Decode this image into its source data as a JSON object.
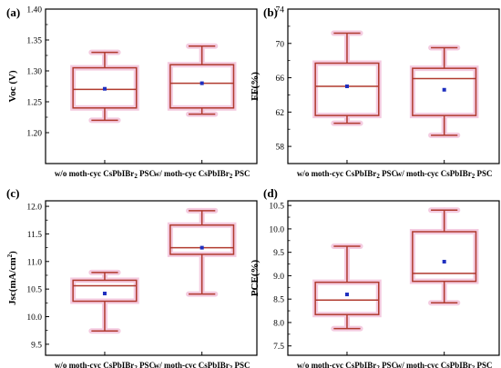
{
  "colors": {
    "box_stroke": "#b03a2e",
    "box_glow": "#f4cbe0",
    "mean_marker": "#1f2fbf",
    "axis": "#000000"
  },
  "chart_data": [
    {
      "type": "box",
      "panel_label": "(a)",
      "ylabel": "Voc (V)",
      "ylim": [
        1.15,
        1.4
      ],
      "yticks": [
        1.2,
        1.25,
        1.3,
        1.35,
        1.4
      ],
      "ytick_labels": [
        "1.20",
        "1.25",
        "1.30",
        "1.35",
        "1.40"
      ],
      "categories": [
        "w/o moth-cyc CsPbIBr2 PSC",
        "w/ moth-cyc CsPbIBr2 PSC"
      ],
      "boxes": [
        {
          "whisker_low": 1.22,
          "q1": 1.24,
          "median": 1.27,
          "q3": 1.305,
          "whisker_high": 1.33,
          "mean": 1.271
        },
        {
          "whisker_low": 1.23,
          "q1": 1.24,
          "median": 1.28,
          "q3": 1.31,
          "whisker_high": 1.34,
          "mean": 1.28
        }
      ]
    },
    {
      "type": "box",
      "panel_label": "(b)",
      "ylabel": "FF(%)",
      "ylim": [
        56,
        74
      ],
      "yticks": [
        58,
        62,
        66,
        70,
        74
      ],
      "ytick_labels": [
        "58",
        "62",
        "66",
        "70",
        "74"
      ],
      "categories": [
        "w/o moth-cyc CsPbIBr2 PSC",
        "w/ moth-cyc CsPbIBr2 PSC"
      ],
      "boxes": [
        {
          "whisker_low": 60.7,
          "q1": 61.6,
          "median": 65.0,
          "q3": 67.7,
          "whisker_high": 71.2,
          "mean": 65.0
        },
        {
          "whisker_low": 59.3,
          "q1": 61.6,
          "median": 65.9,
          "q3": 67.1,
          "whisker_high": 69.5,
          "mean": 64.6
        }
      ]
    },
    {
      "type": "box",
      "panel_label": "(c)",
      "ylabel": "Jsc(mA/cm²)",
      "ylim": [
        9.3,
        12.1
      ],
      "yticks": [
        9.5,
        10.0,
        10.5,
        11.0,
        11.5,
        12.0
      ],
      "ytick_labels": [
        "9.5",
        "10.0",
        "10.5",
        "11.0",
        "11.5",
        "12.0"
      ],
      "categories": [
        "w/o moth-cyc CsPbIBr2 PSC",
        "w/ moth-cyc CsPbIBr2 PSC"
      ],
      "boxes": [
        {
          "whisker_low": 9.74,
          "q1": 10.28,
          "median": 10.56,
          "q3": 10.66,
          "whisker_high": 10.8,
          "mean": 10.42
        },
        {
          "whisker_low": 10.41,
          "q1": 11.13,
          "median": 11.25,
          "q3": 11.66,
          "whisker_high": 11.92,
          "mean": 11.25
        }
      ]
    },
    {
      "type": "box",
      "panel_label": "(d)",
      "ylabel": "PCE(%)",
      "ylim": [
        7.3,
        10.6
      ],
      "yticks": [
        7.5,
        8.0,
        8.5,
        9.0,
        9.5,
        10.0,
        10.5
      ],
      "ytick_labels": [
        "7.5",
        "8.0",
        "8.5",
        "9.0",
        "9.5",
        "10.0",
        "10.5"
      ],
      "categories": [
        "w/o moth-cyc CsPbIBr2 PSC",
        "w/ moth-cyc CsPbIBr2 PSC"
      ],
      "boxes": [
        {
          "whisker_low": 7.87,
          "q1": 8.17,
          "median": 8.48,
          "q3": 8.86,
          "whisker_high": 9.63,
          "mean": 8.6
        },
        {
          "whisker_low": 8.42,
          "q1": 8.88,
          "median": 9.05,
          "q3": 9.94,
          "whisker_high": 10.4,
          "mean": 9.3
        }
      ]
    }
  ]
}
